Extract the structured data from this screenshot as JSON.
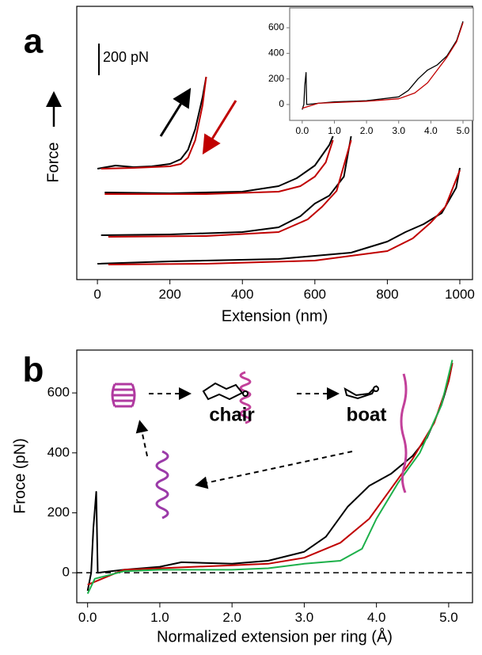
{
  "chart_data": [
    {
      "type": "line",
      "label": "a",
      "xlabel": "Extension (nm)",
      "ylabel": "Force",
      "xlim": [
        -57,
        1035
      ],
      "ylim": [
        0,
        1725
      ],
      "xticks": [
        0,
        200,
        400,
        600,
        800,
        1000
      ],
      "scale_bar": {
        "value": 200,
        "label": "200 pN"
      },
      "series": [
        {
          "color": "#000000",
          "x": [
            0,
            50,
            100,
            150,
            200,
            230,
            250,
            270,
            290,
            300
          ],
          "values": [
            700,
            720,
            710,
            715,
            730,
            760,
            820,
            950,
            1150,
            1280
          ]
        },
        {
          "color": "#c00000",
          "x": [
            10,
            100,
            200,
            230,
            250,
            270,
            290,
            300
          ],
          "values": [
            700,
            705,
            715,
            730,
            770,
            880,
            1100,
            1280
          ]
        },
        {
          "color": "#000000",
          "x": [
            20,
            200,
            400,
            500,
            550,
            600,
            640,
            650
          ],
          "values": [
            550,
            545,
            555,
            590,
            640,
            720,
            850,
            905
          ]
        },
        {
          "color": "#c00000",
          "x": [
            20,
            300,
            500,
            560,
            600,
            630,
            650
          ],
          "values": [
            540,
            540,
            555,
            590,
            650,
            740,
            880
          ]
        },
        {
          "color": "#000000",
          "x": [
            10,
            200,
            400,
            500,
            560,
            600,
            640,
            680,
            700
          ],
          "values": [
            280,
            285,
            300,
            330,
            400,
            480,
            530,
            650,
            905
          ]
        },
        {
          "color": "#c00000",
          "x": [
            30,
            300,
            500,
            580,
            620,
            660,
            700
          ],
          "values": [
            270,
            275,
            300,
            380,
            460,
            560,
            880
          ]
        },
        {
          "color": "#000000",
          "x": [
            0,
            200,
            500,
            700,
            800,
            850,
            900,
            950,
            990,
            1000
          ],
          "values": [
            100,
            115,
            130,
            170,
            240,
            300,
            350,
            420,
            580,
            705
          ]
        },
        {
          "color": "#c00000",
          "x": [
            30,
            300,
            600,
            800,
            870,
            920,
            960,
            1000
          ],
          "values": [
            95,
            100,
            120,
            180,
            260,
            360,
            460,
            690
          ]
        }
      ]
    },
    {
      "type": "line",
      "xlim": [
        -0.39,
        5.32
      ],
      "ylim": [
        -124,
        755
      ],
      "xticks": [
        {
          "value": 0,
          "label": "0.0"
        },
        {
          "value": 1,
          "label": "1.0"
        },
        {
          "value": 2,
          "label": "2.0"
        },
        {
          "value": 3,
          "label": "3.0"
        },
        {
          "value": 4,
          "label": "4.0"
        },
        {
          "value": 5,
          "label": "5.0"
        }
      ],
      "yticks": [
        0,
        200,
        400,
        600
      ],
      "series": [
        {
          "color": "#000000",
          "x": [
            0,
            0.05,
            0.08,
            0.12,
            0.14,
            0.5,
            1.0,
            2.0,
            3.0,
            3.3,
            3.6,
            3.9,
            4.2,
            4.5,
            4.8,
            5.0
          ],
          "values": [
            -40,
            0,
            150,
            250,
            0,
            10,
            20,
            30,
            60,
            110,
            200,
            270,
            310,
            380,
            500,
            650
          ]
        },
        {
          "color": "#c00000",
          "x": [
            0,
            0.5,
            1,
            2,
            3,
            3.5,
            3.9,
            4.2,
            4.5,
            4.8,
            5.0
          ],
          "values": [
            -30,
            10,
            15,
            25,
            45,
            90,
            170,
            270,
            370,
            490,
            640
          ]
        }
      ]
    },
    {
      "type": "line",
      "label": "b",
      "xlabel": "Normalized extension per ring (Å)",
      "ylabel": "Froce (pN)",
      "xlim": [
        -0.15,
        5.33
      ],
      "ylim": [
        -100,
        743
      ],
      "xticks": [
        {
          "value": 0,
          "label": "0.0"
        },
        {
          "value": 1,
          "label": "1.0"
        },
        {
          "value": 2,
          "label": "2.0"
        },
        {
          "value": 3,
          "label": "3.0"
        },
        {
          "value": 4,
          "label": "4.0"
        },
        {
          "value": 5,
          "label": "5.0"
        }
      ],
      "yticks": [
        0,
        200,
        400,
        600
      ],
      "reference_line": 0,
      "annotations": [
        "chair",
        "boat"
      ],
      "series": [
        {
          "color": "#000000",
          "x": [
            0,
            0.05,
            0.08,
            0.12,
            0.14,
            0.5,
            1.0,
            1.3,
            2.0,
            2.5,
            3.0,
            3.3,
            3.6,
            3.9,
            4.2,
            4.5,
            4.7,
            4.9,
            5.0,
            5.05
          ],
          "values": [
            -60,
            0,
            150,
            270,
            0,
            10,
            20,
            35,
            30,
            40,
            70,
            120,
            220,
            290,
            330,
            390,
            450,
            560,
            640,
            700
          ]
        },
        {
          "color": "#c00000",
          "x": [
            0,
            0.5,
            1,
            2,
            2.5,
            3,
            3.5,
            3.9,
            4.2,
            4.5,
            4.8,
            5.0,
            5.05
          ],
          "values": [
            -40,
            10,
            15,
            25,
            30,
            50,
            100,
            180,
            280,
            380,
            500,
            640,
            700
          ]
        },
        {
          "color": "#1db04a",
          "x": [
            0,
            0.1,
            0.5,
            1,
            2,
            2.5,
            3,
            3.5,
            3.8,
            4.0,
            4.3,
            4.6,
            4.9,
            5.05
          ],
          "values": [
            -70,
            -20,
            5,
            10,
            10,
            15,
            30,
            40,
            80,
            180,
            300,
            400,
            560,
            710
          ]
        }
      ]
    }
  ]
}
